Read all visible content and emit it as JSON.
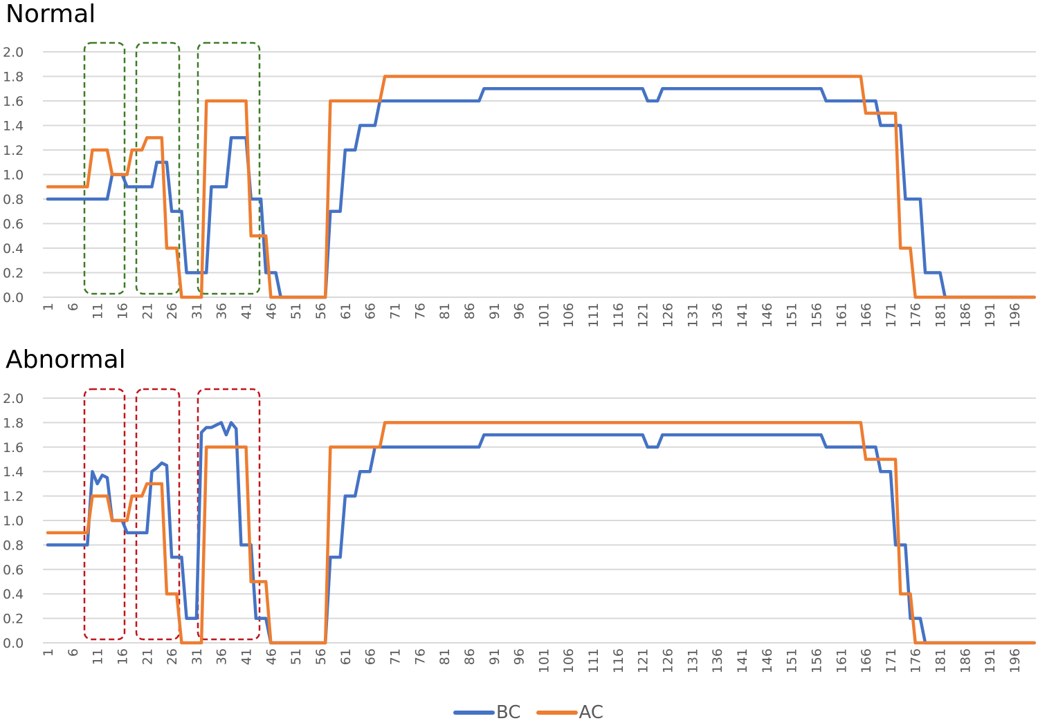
{
  "panels": [
    {
      "title": "Normal",
      "box_color": "#3e7a26"
    },
    {
      "title": "Abnormal",
      "box_color": "#c0141c"
    }
  ],
  "legend": [
    {
      "label": "BC",
      "color": "#4472c4"
    },
    {
      "label": "AC",
      "color": "#ed7d31"
    }
  ],
  "chart_data": [
    {
      "type": "line",
      "title": "Normal",
      "xlabel": "",
      "ylabel": "",
      "ylim": [
        0,
        2.0
      ],
      "xlim": [
        1,
        200
      ],
      "yticks": [
        "0.0",
        "0.2",
        "0.4",
        "0.6",
        "0.8",
        "1.0",
        "1.2",
        "1.4",
        "1.6",
        "1.8",
        "2.0"
      ],
      "xticks": [
        1,
        6,
        11,
        16,
        21,
        26,
        31,
        36,
        41,
        46,
        51,
        56,
        61,
        66,
        71,
        76,
        81,
        86,
        91,
        96,
        101,
        106,
        111,
        116,
        121,
        126,
        131,
        136,
        141,
        146,
        151,
        156,
        161,
        166,
        171,
        176,
        181,
        186,
        191,
        196
      ],
      "grid": true,
      "legend_position": "bottom",
      "highlight_boxes_x": [
        [
          9,
          17
        ],
        [
          19,
          27
        ],
        [
          31,
          44
        ]
      ],
      "series": [
        {
          "name": "BC",
          "runs": [
            [
              1,
              13,
              0.8
            ],
            [
              14,
              15,
              1.0
            ],
            [
              16,
              16,
              1.0
            ],
            [
              17,
              19,
              0.9
            ],
            [
              20,
              22,
              0.9
            ],
            [
              23,
              25,
              1.1
            ],
            [
              26,
              28,
              0.7
            ],
            [
              29,
              31,
              0.2
            ],
            [
              32,
              33,
              0.2
            ],
            [
              34,
              37,
              0.9
            ],
            [
              38,
              40,
              1.3
            ],
            [
              41,
              41,
              1.3
            ],
            [
              42,
              44,
              0.8
            ],
            [
              45,
              47,
              0.2
            ],
            [
              48,
              57,
              0.0
            ],
            [
              58,
              60,
              0.7
            ],
            [
              61,
              63,
              1.2
            ],
            [
              64,
              67,
              1.4
            ],
            [
              68,
              88,
              1.6
            ],
            [
              89,
              121,
              1.7
            ],
            [
              122,
              124,
              1.6
            ],
            [
              125,
              157,
              1.7
            ],
            [
              158,
              168,
              1.6
            ],
            [
              169,
              172,
              1.4
            ],
            [
              173,
              173,
              1.4
            ],
            [
              174,
              177,
              0.8
            ],
            [
              178,
              181,
              0.2
            ],
            [
              182,
              200,
              0.0
            ]
          ]
        },
        {
          "name": "AC",
          "runs": [
            [
              1,
              9,
              0.9
            ],
            [
              10,
              13,
              1.2
            ],
            [
              14,
              16,
              1.0
            ],
            [
              17,
              17,
              1.0
            ],
            [
              18,
              20,
              1.2
            ],
            [
              21,
              23,
              1.3
            ],
            [
              24,
              24,
              1.3
            ],
            [
              25,
              27,
              0.4
            ],
            [
              28,
              32,
              0.0
            ],
            [
              33,
              40,
              1.6
            ],
            [
              41,
              41,
              1.6
            ],
            [
              42,
              45,
              0.5
            ],
            [
              46,
              57,
              0.0
            ],
            [
              58,
              68,
              1.6
            ],
            [
              69,
              165,
              1.8
            ],
            [
              166,
              172,
              1.5
            ],
            [
              173,
              175,
              0.4
            ],
            [
              176,
              200,
              0.0
            ]
          ]
        }
      ]
    },
    {
      "type": "line",
      "title": "Abnormal",
      "xlabel": "",
      "ylabel": "",
      "ylim": [
        0,
        2.0
      ],
      "xlim": [
        1,
        200
      ],
      "yticks": [
        "0.0",
        "0.2",
        "0.4",
        "0.6",
        "0.8",
        "1.0",
        "1.2",
        "1.4",
        "1.6",
        "1.8",
        "2.0"
      ],
      "xticks": [
        1,
        6,
        11,
        16,
        21,
        26,
        31,
        36,
        41,
        46,
        51,
        56,
        61,
        66,
        71,
        76,
        81,
        86,
        91,
        96,
        101,
        106,
        111,
        116,
        121,
        126,
        131,
        136,
        141,
        146,
        151,
        156,
        161,
        166,
        171,
        176,
        181,
        186,
        191,
        196
      ],
      "grid": true,
      "legend_position": "bottom",
      "highlight_boxes_x": [
        [
          9,
          17
        ],
        [
          19,
          27
        ],
        [
          31,
          44
        ]
      ],
      "series": [
        {
          "name": "BC",
          "points_override": [
            [
              1,
              0.8
            ],
            [
              9,
              0.8
            ],
            [
              10,
              1.4
            ],
            [
              11,
              1.3
            ],
            [
              12,
              1.37
            ],
            [
              13,
              1.35
            ],
            [
              14,
              1.0
            ],
            [
              16,
              1.0
            ],
            [
              17,
              0.9
            ],
            [
              21,
              0.9
            ],
            [
              22,
              1.4
            ],
            [
              23,
              1.43
            ],
            [
              24,
              1.47
            ],
            [
              25,
              1.45
            ],
            [
              26,
              0.7
            ],
            [
              28,
              0.7
            ],
            [
              29,
              0.2
            ],
            [
              31,
              0.2
            ],
            [
              32,
              1.72
            ],
            [
              33,
              1.76
            ],
            [
              34,
              1.76
            ],
            [
              35,
              1.78
            ],
            [
              36,
              1.8
            ],
            [
              37,
              1.7
            ],
            [
              38,
              1.8
            ],
            [
              39,
              1.75
            ],
            [
              40,
              0.8
            ],
            [
              42,
              0.8
            ],
            [
              43,
              0.2
            ],
            [
              45,
              0.2
            ],
            [
              46,
              0.0
            ],
            [
              57,
              0.0
            ],
            [
              58,
              0.7
            ],
            [
              60,
              0.7
            ],
            [
              61,
              1.2
            ],
            [
              63,
              1.2
            ],
            [
              64,
              1.4
            ],
            [
              66,
              1.4
            ],
            [
              67,
              1.6
            ],
            [
              88,
              1.6
            ],
            [
              89,
              1.7
            ],
            [
              121,
              1.7
            ],
            [
              122,
              1.6
            ],
            [
              124,
              1.6
            ],
            [
              125,
              1.7
            ],
            [
              157,
              1.7
            ],
            [
              158,
              1.6
            ],
            [
              168,
              1.6
            ],
            [
              169,
              1.4
            ],
            [
              171,
              1.4
            ],
            [
              172,
              0.8
            ],
            [
              174,
              0.8
            ],
            [
              175,
              0.2
            ],
            [
              177,
              0.2
            ],
            [
              178,
              0.0
            ],
            [
              200,
              0.0
            ]
          ]
        },
        {
          "name": "AC",
          "runs": [
            [
              1,
              9,
              0.9
            ],
            [
              10,
              13,
              1.2
            ],
            [
              14,
              16,
              1.0
            ],
            [
              17,
              17,
              1.0
            ],
            [
              18,
              20,
              1.2
            ],
            [
              21,
              23,
              1.3
            ],
            [
              24,
              24,
              1.3
            ],
            [
              25,
              27,
              0.4
            ],
            [
              28,
              32,
              0.0
            ],
            [
              33,
              40,
              1.6
            ],
            [
              41,
              41,
              1.6
            ],
            [
              42,
              45,
              0.5
            ],
            [
              46,
              57,
              0.0
            ],
            [
              58,
              68,
              1.6
            ],
            [
              69,
              165,
              1.8
            ],
            [
              166,
              172,
              1.5
            ],
            [
              173,
              175,
              0.4
            ],
            [
              176,
              200,
              0.0
            ]
          ]
        }
      ]
    }
  ]
}
